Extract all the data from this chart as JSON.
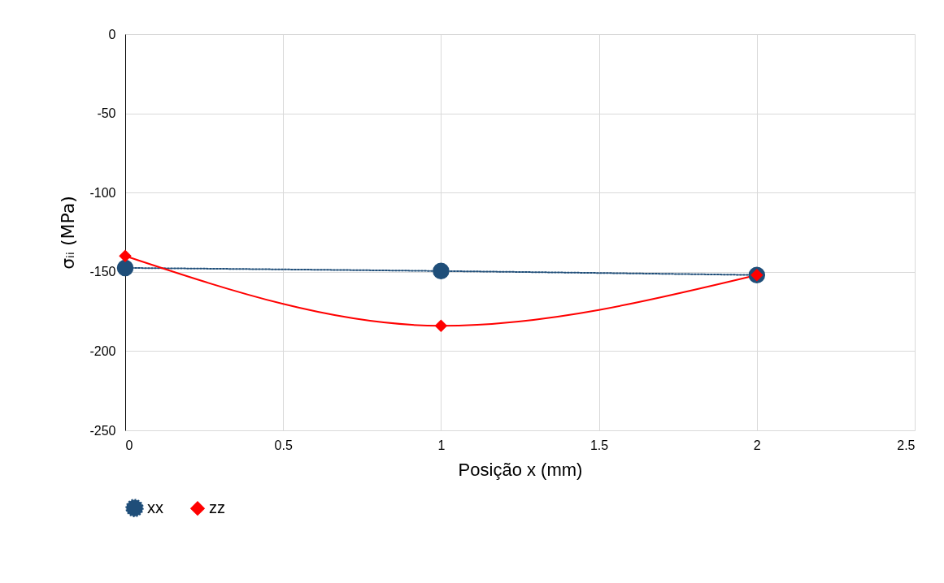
{
  "chart_data": {
    "type": "line",
    "xlabel": "Posição x (mm)",
    "ylabel": "σᵢᵢ (MPa)",
    "x": [
      0,
      1,
      2
    ],
    "series": [
      {
        "name": "xx",
        "color": "#1f4e79",
        "values": [
          -147.5,
          -149.5,
          -152
        ],
        "marker": "circle",
        "line_style": "dotted"
      },
      {
        "name": "zz",
        "color": "#ff0000",
        "values": [
          -140,
          -184,
          -152
        ],
        "marker": "diamond",
        "line_style": "solid"
      }
    ],
    "xlim": [
      0,
      2.5
    ],
    "xticks": [
      0,
      0.5,
      1,
      1.5,
      2,
      2.5
    ],
    "ylim": [
      -250,
      0
    ],
    "yticks": [
      -250,
      -200,
      -150,
      -100,
      -50,
      0
    ],
    "grid": true,
    "legend": "bottom"
  }
}
